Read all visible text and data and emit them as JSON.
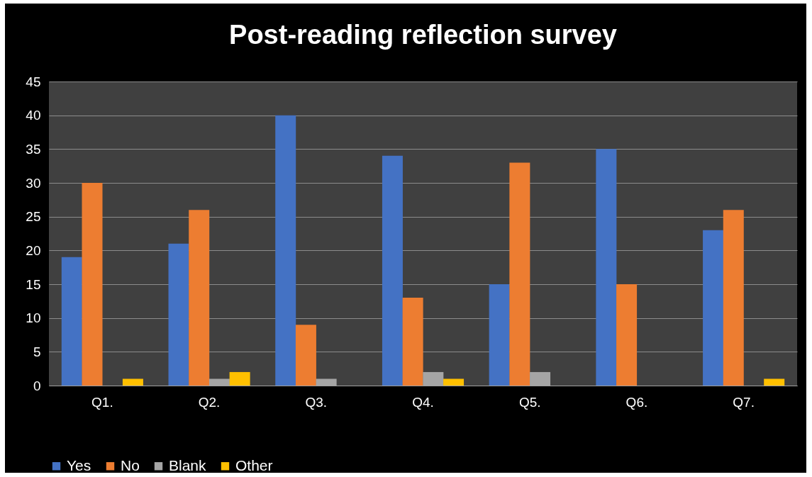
{
  "chart_data": {
    "type": "bar",
    "title": "Post-reading reflection survey",
    "categories": [
      "Q1.",
      "Q2.",
      "Q3.",
      "Q4.",
      "Q5.",
      "Q6.",
      "Q7."
    ],
    "series": [
      {
        "name": "Yes",
        "color": "#4472c4",
        "values": [
          19,
          21,
          40,
          34,
          15,
          35,
          23
        ]
      },
      {
        "name": "No",
        "color": "#ed7d31",
        "values": [
          30,
          26,
          9,
          13,
          33,
          15,
          26
        ]
      },
      {
        "name": "Blank",
        "color": "#a5a5a5",
        "values": [
          0,
          1,
          1,
          2,
          2,
          0,
          0
        ]
      },
      {
        "name": "Other",
        "color": "#ffc000",
        "values": [
          1,
          2,
          0,
          1,
          0,
          0,
          1
        ]
      }
    ],
    "ylim": [
      0,
      45
    ],
    "yticks": [
      0,
      5,
      10,
      15,
      20,
      25,
      30,
      35,
      40,
      45
    ],
    "grid": "y",
    "legend": "bottom"
  }
}
